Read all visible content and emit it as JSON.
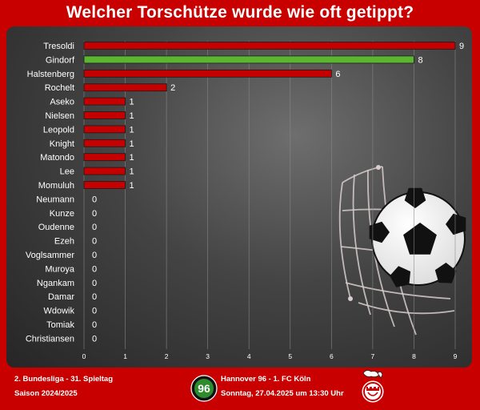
{
  "title": "Welcher Torschütze wurde wie oft getippt?",
  "footer": {
    "league": "2. Bundesliga - 31. Spieltag",
    "season": "Saison 2024/2025",
    "match": "Hannover 96 - 1. FC Köln",
    "date": "Sonntag, 27.04.2025 um 13:30 Uhr",
    "hannover_logo_text": "96"
  },
  "colors": {
    "background": "#c80000",
    "bar_default": "#c40000",
    "bar_highlight": "#5cb531",
    "text": "#ffffff"
  },
  "chart_data": {
    "type": "bar",
    "orientation": "horizontal",
    "categories": [
      "Tresoldi",
      "Gindorf",
      "Halstenberg",
      "Rochelt",
      "Aseko",
      "Nielsen",
      "Leopold",
      "Knight",
      "Matondo",
      "Lee",
      "Momuluh",
      "Neumann",
      "Kunze",
      "Oudenne",
      "Ezeh",
      "Voglsammer",
      "Muroya",
      "Ngankam",
      "Damar",
      "Wdowik",
      "Tomiak",
      "Christiansen"
    ],
    "values": [
      9,
      8,
      6,
      2,
      1,
      1,
      1,
      1,
      1,
      1,
      1,
      0,
      0,
      0,
      0,
      0,
      0,
      0,
      0,
      0,
      0,
      0
    ],
    "highlight_index": 1,
    "xlim": [
      0,
      9
    ],
    "xticks": [
      0,
      1,
      2,
      3,
      4,
      5,
      6,
      7,
      8,
      9
    ],
    "grid": "vertical",
    "legend": "none"
  }
}
